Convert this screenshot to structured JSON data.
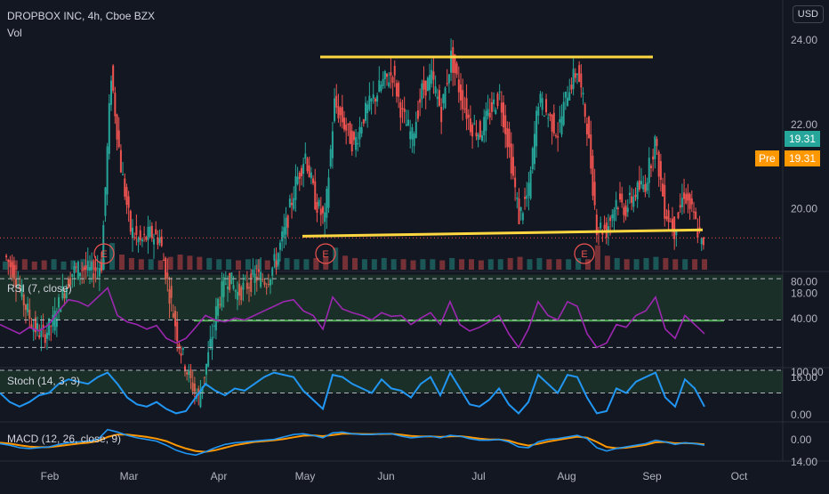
{
  "header": {
    "symbol_line": "DROPBOX INC, 4h, Cboe BZX",
    "vol_label": "Vol",
    "currency_button": "USD"
  },
  "badges": {
    "last_price": "19.31",
    "pre_label": "Pre",
    "pre_price": "19.31"
  },
  "colors": {
    "background": "#131722",
    "up": "#26a69a",
    "down": "#ef5350",
    "rsi_line": "#9c27b0",
    "stoch_line": "#2196f3",
    "macd_line": "#2196f3",
    "signal_line": "#ff9800",
    "channel_line": "#ffd740",
    "support_line": "#4caf50",
    "last_price_badge": "#26a69a",
    "pre_badge": "#ff9800"
  },
  "earnings_markers": [
    "E",
    "E",
    "E"
  ],
  "chart_data": [
    {
      "type": "candlestick",
      "title": "DROPBOX INC, 4h, Cboe BZX",
      "ylim": [
        13.0,
        25.0
      ],
      "y_ticks": [
        "24.00",
        "22.00",
        "20.00",
        "18.00",
        "16.00",
        "14.00"
      ],
      "x_ticks": [
        "Feb",
        "Mar",
        "Apr",
        "May",
        "Jun",
        "Jul",
        "Aug",
        "Sep",
        "Oct"
      ],
      "close_path": [
        18.9,
        18.5,
        17.8,
        17.2,
        17.0,
        17.3,
        18.0,
        18.5,
        18.6,
        18.5,
        18.7,
        23.2,
        21.0,
        19.5,
        19.2,
        19.4,
        19.3,
        18.0,
        16.8,
        16.0,
        15.5,
        16.5,
        17.8,
        18.4,
        18.0,
        18.2,
        18.4,
        18.3,
        18.8,
        19.6,
        20.6,
        21.3,
        20.2,
        19.7,
        22.5,
        22.0,
        21.5,
        22.2,
        22.6,
        23.0,
        23.2,
        22.2,
        21.7,
        22.8,
        23.1,
        22.3,
        23.6,
        22.7,
        22.0,
        21.8,
        22.3,
        22.7,
        21.4,
        19.8,
        20.4,
        22.6,
        22.2,
        21.8,
        22.8,
        23.3,
        22.0,
        19.6,
        19.5,
        20.2,
        20.0,
        20.4,
        20.6,
        21.6,
        20.0,
        19.5,
        20.4,
        19.8,
        19.0
      ],
      "volume_level": [
        0.2,
        0.25,
        0.3,
        0.2,
        0.25,
        0.3,
        0.2,
        0.25,
        0.3,
        0.25,
        0.3,
        1.0,
        0.5,
        0.35,
        0.3,
        0.3,
        0.25,
        0.4,
        0.5,
        0.45,
        0.4,
        0.35,
        0.3,
        0.3,
        0.25,
        0.3,
        0.3,
        0.25,
        0.3,
        0.35,
        0.3,
        0.3,
        0.35,
        0.4,
        0.8,
        0.45,
        0.35,
        0.3,
        0.3,
        0.35,
        0.3,
        0.3,
        0.25,
        0.3,
        0.3,
        0.25,
        0.35,
        0.3,
        0.3,
        0.25,
        0.3,
        0.3,
        0.35,
        0.4,
        0.3,
        0.35,
        0.3,
        0.3,
        0.3,
        0.35,
        0.3,
        0.9,
        0.45,
        0.35,
        0.3,
        0.3,
        0.35,
        0.4,
        0.35,
        0.3,
        0.3,
        0.3,
        0.3
      ],
      "last_price": 19.31,
      "channel_top": 23.6,
      "channel_bottom": [
        19.35,
        19.5
      ],
      "support": 17.35
    },
    {
      "type": "line",
      "title": "RSI (7, close)",
      "ylim": [
        0,
        100
      ],
      "y_ticks": [
        "80.00",
        "40.00"
      ],
      "band": [
        50,
        80
      ],
      "values": [
        45,
        40,
        35,
        42,
        38,
        45,
        60,
        72,
        70,
        65,
        75,
        85,
        55,
        48,
        45,
        40,
        44,
        30,
        25,
        30,
        42,
        55,
        50,
        48,
        52,
        50,
        55,
        60,
        65,
        70,
        72,
        60,
        55,
        40,
        75,
        62,
        58,
        55,
        50,
        58,
        54,
        55,
        45,
        52,
        58,
        45,
        70,
        45,
        38,
        42,
        48,
        55,
        35,
        20,
        40,
        70,
        55,
        50,
        70,
        65,
        35,
        20,
        25,
        45,
        42,
        55,
        60,
        75,
        40,
        30,
        55,
        45,
        35
      ]
    },
    {
      "type": "line",
      "title": "Stoch (14, 3, 3)",
      "ylim": [
        0,
        100
      ],
      "y_ticks": [
        "100.00",
        "0.00"
      ],
      "band": [
        80,
        100
      ],
      "values": [
        50,
        30,
        20,
        30,
        45,
        50,
        70,
        80,
        75,
        70,
        85,
        95,
        70,
        40,
        25,
        20,
        30,
        15,
        5,
        10,
        40,
        70,
        55,
        45,
        60,
        55,
        70,
        85,
        95,
        90,
        85,
        55,
        35,
        15,
        90,
        85,
        70,
        60,
        50,
        80,
        60,
        55,
        40,
        70,
        85,
        45,
        95,
        60,
        25,
        20,
        35,
        60,
        25,
        5,
        30,
        90,
        70,
        50,
        90,
        85,
        40,
        5,
        10,
        60,
        50,
        75,
        85,
        95,
        40,
        20,
        80,
        60,
        20
      ]
    },
    {
      "type": "line",
      "title": "MACD (12, 26, close, 9)",
      "y_ticks": [
        "0.00"
      ],
      "ylim": [
        -1.0,
        1.0
      ],
      "macd": [
        -0.1,
        -0.2,
        -0.35,
        -0.4,
        -0.35,
        -0.3,
        -0.15,
        -0.05,
        0.0,
        0.05,
        0.15,
        0.75,
        0.6,
        0.4,
        0.25,
        0.15,
        0.05,
        -0.2,
        -0.5,
        -0.7,
        -0.8,
        -0.6,
        -0.35,
        -0.15,
        -0.05,
        0.0,
        0.05,
        0.1,
        0.15,
        0.3,
        0.45,
        0.5,
        0.4,
        0.25,
        0.55,
        0.6,
        0.5,
        0.45,
        0.45,
        0.5,
        0.5,
        0.35,
        0.25,
        0.3,
        0.35,
        0.25,
        0.4,
        0.35,
        0.2,
        0.1,
        0.1,
        0.15,
        0.0,
        -0.3,
        -0.35,
        0.0,
        0.15,
        0.2,
        0.3,
        0.4,
        0.2,
        -0.35,
        -0.55,
        -0.4,
        -0.3,
        -0.2,
        -0.1,
        0.1,
        0.0,
        -0.15,
        -0.05,
        -0.1,
        -0.2
      ],
      "signal": [
        -0.05,
        -0.1,
        -0.2,
        -0.28,
        -0.32,
        -0.32,
        -0.25,
        -0.18,
        -0.1,
        -0.05,
        0.05,
        0.3,
        0.45,
        0.45,
        0.38,
        0.3,
        0.2,
        0.05,
        -0.2,
        -0.4,
        -0.55,
        -0.6,
        -0.5,
        -0.35,
        -0.2,
        -0.1,
        0.0,
        0.05,
        0.1,
        0.18,
        0.28,
        0.38,
        0.4,
        0.35,
        0.42,
        0.5,
        0.5,
        0.48,
        0.47,
        0.48,
        0.49,
        0.44,
        0.36,
        0.33,
        0.34,
        0.3,
        0.34,
        0.35,
        0.28,
        0.2,
        0.15,
        0.15,
        0.08,
        -0.1,
        -0.22,
        -0.12,
        0.02,
        0.12,
        0.22,
        0.32,
        0.26,
        0.0,
        -0.3,
        -0.38,
        -0.35,
        -0.27,
        -0.18,
        -0.02,
        0.0,
        -0.08,
        -0.07,
        -0.09,
        -0.15
      ]
    }
  ]
}
